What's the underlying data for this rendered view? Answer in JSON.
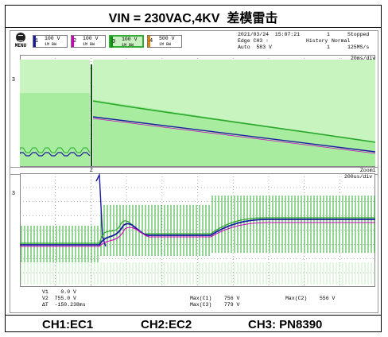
{
  "title": "VIN = 230VAC,4KV  差模雷击",
  "scope": {
    "menu_label": "MENU",
    "channels": [
      {
        "num": "1",
        "value": "100  V",
        "coupling": "1M BW",
        "color": "#1a1aa0",
        "active": false
      },
      {
        "num": "2",
        "value": "100  V",
        "coupling": "1M BW",
        "color": "#d000c0",
        "active": false
      },
      {
        "num": "3",
        "value": "100  V",
        "coupling": "1M BW",
        "color": "#109010",
        "active": true
      },
      {
        "num": "4",
        "value": "500  V",
        "coupling": "1M BW",
        "color": "#e08000",
        "active": false
      }
    ],
    "timestamp": "2021/03/24  15:07:21",
    "trigger_line1": "Edge CH3 ↑",
    "trigger_line2": "Auto  583 V",
    "count": "1",
    "status": "Stopped",
    "history_label": "History",
    "history_mode": "Normal",
    "history_count": "1",
    "sample_rate": "125MS/s",
    "top_timebase": "20ms/div",
    "zoom_label": "Zoom1",
    "zoom_timebase": "200us/div",
    "marker_t": "T",
    "marker_z": "Z",
    "measurements": {
      "v1": "V1    0.0 V",
      "v2": "V2  755.0 V",
      "dt": "ΔT  -150.238ms",
      "max_c1": "Max(C1)    756 V",
      "max_c3": "Max(C3)    779 V",
      "max_c2": "Max(C2)    556 V"
    }
  },
  "footer": {
    "ch1": "CH1:EC1",
    "ch2": "CH2:EC2",
    "ch3": "CH3: PN8390"
  },
  "colors": {
    "ch3_green": "#2aa82a",
    "ch3_fill": "#a8eca0",
    "ch1_blue": "#1a1aa0",
    "ch2_magenta": "#d000c0",
    "grid": "#7a7a7a"
  }
}
